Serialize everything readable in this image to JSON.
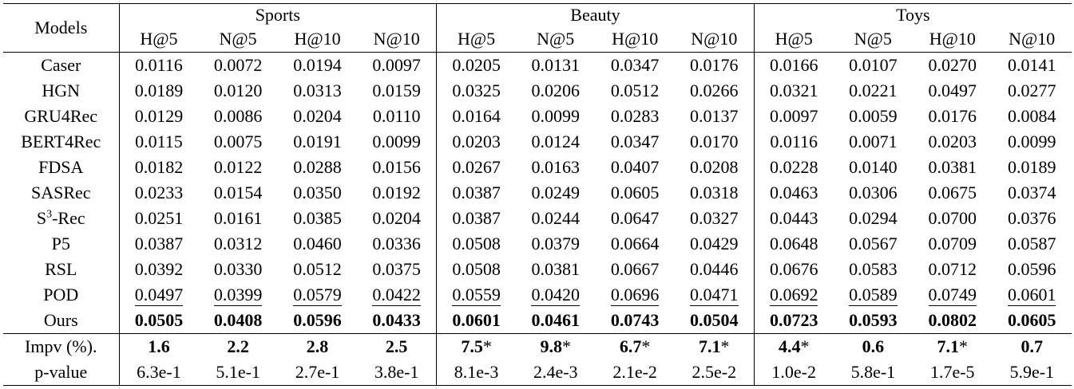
{
  "header": {
    "models_label": "Models",
    "groups": [
      "Sports",
      "Beauty",
      "Toys"
    ],
    "metrics": [
      "H@5",
      "N@5",
      "H@10",
      "N@10"
    ]
  },
  "rows": [
    {
      "model": "Caser",
      "values": [
        "0.0116",
        "0.0072",
        "0.0194",
        "0.0097",
        "0.0205",
        "0.0131",
        "0.0347",
        "0.0176",
        "0.0166",
        "0.0107",
        "0.0270",
        "0.0141"
      ]
    },
    {
      "model": "HGN",
      "values": [
        "0.0189",
        "0.0120",
        "0.0313",
        "0.0159",
        "0.0325",
        "0.0206",
        "0.0512",
        "0.0266",
        "0.0321",
        "0.0221",
        "0.0497",
        "0.0277"
      ]
    },
    {
      "model": "GRU4Rec",
      "values": [
        "0.0129",
        "0.0086",
        "0.0204",
        "0.0110",
        "0.0164",
        "0.0099",
        "0.0283",
        "0.0137",
        "0.0097",
        "0.0059",
        "0.0176",
        "0.0084"
      ]
    },
    {
      "model": "BERT4Rec",
      "values": [
        "0.0115",
        "0.0075",
        "0.0191",
        "0.0099",
        "0.0203",
        "0.0124",
        "0.0347",
        "0.0170",
        "0.0116",
        "0.0071",
        "0.0203",
        "0.0099"
      ]
    },
    {
      "model": "FDSA",
      "values": [
        "0.0182",
        "0.0122",
        "0.0288",
        "0.0156",
        "0.0267",
        "0.0163",
        "0.0407",
        "0.0208",
        "0.0228",
        "0.0140",
        "0.0381",
        "0.0189"
      ]
    },
    {
      "model": "SASRec",
      "values": [
        "0.0233",
        "0.0154",
        "0.0350",
        "0.0192",
        "0.0387",
        "0.0249",
        "0.0605",
        "0.0318",
        "0.0463",
        "0.0306",
        "0.0675",
        "0.0374"
      ]
    },
    {
      "model_prefix": "S",
      "model_sup": "3",
      "model_suffix": "-Rec",
      "values": [
        "0.0251",
        "0.0161",
        "0.0385",
        "0.0204",
        "0.0387",
        "0.0244",
        "0.0647",
        "0.0327",
        "0.0443",
        "0.0294",
        "0.0700",
        "0.0376"
      ]
    },
    {
      "model": "P5",
      "values": [
        "0.0387",
        "0.0312",
        "0.0460",
        "0.0336",
        "0.0508",
        "0.0379",
        "0.0664",
        "0.0429",
        "0.0648",
        "0.0567",
        "0.0709",
        "0.0587"
      ]
    },
    {
      "model": "RSL",
      "values": [
        "0.0392",
        "0.0330",
        "0.0512",
        "0.0375",
        "0.0508",
        "0.0381",
        "0.0667",
        "0.0446",
        "0.0676",
        "0.0583",
        "0.0712",
        "0.0596"
      ]
    },
    {
      "model": "POD",
      "values": [
        "0.0497",
        "0.0399",
        "0.0579",
        "0.0422",
        "0.0559",
        "0.0420",
        "0.0696",
        "0.0471",
        "0.0692",
        "0.0589",
        "0.0749",
        "0.0601"
      ]
    },
    {
      "model": "Ours",
      "values": [
        "0.0505",
        "0.0408",
        "0.0596",
        "0.0433",
        "0.0601",
        "0.0461",
        "0.0743",
        "0.0504",
        "0.0723",
        "0.0593",
        "0.0802",
        "0.0605"
      ]
    }
  ],
  "impv": {
    "label": "Impv (%).",
    "values": [
      "1.6",
      "2.2",
      "2.8",
      "2.5",
      "7.5",
      "9.8",
      "6.7",
      "7.1",
      "4.4",
      "0.6",
      "7.1",
      "0.7"
    ],
    "marks": [
      "",
      "",
      "",
      "",
      "*",
      "*",
      "*",
      "*",
      "*",
      "",
      "*",
      ""
    ]
  },
  "pvalue": {
    "label": "p-value",
    "values": [
      "6.3e-1",
      "5.1e-1",
      "2.7e-1",
      "3.8e-1",
      "8.1e-3",
      "2.4e-3",
      "2.1e-2",
      "2.5e-2",
      "1.0e-2",
      "5.8e-1",
      "1.7e-5",
      "5.9e-1"
    ]
  }
}
